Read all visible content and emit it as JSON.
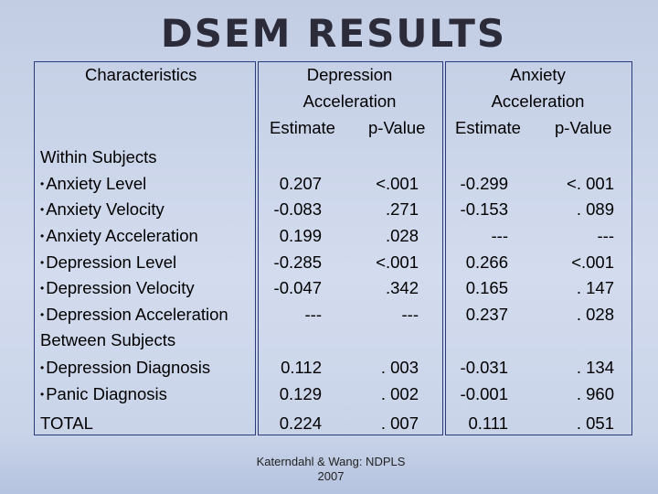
{
  "title": "DSEM RESULTS",
  "headers": {
    "characteristics": "Characteristics",
    "dep_line1": "Depression",
    "dep_line2": "Acceleration",
    "dep_est": "Estimate",
    "dep_p": "p-Value",
    "anx_line1": "Anxiety",
    "anx_line2": "Acceleration",
    "anx_est": "Estimate",
    "anx_p": "p-Value"
  },
  "sections": {
    "within": "Within Subjects",
    "between": "Between Subjects"
  },
  "rows": [
    {
      "label": "Anxiety Level",
      "bullet": true,
      "dep_est": "0.207",
      "dep_p": "<.001",
      "anx_est": "-0.299",
      "anx_p": "<. 001"
    },
    {
      "label": "Anxiety Velocity",
      "bullet": true,
      "dep_est": "-0.083",
      "dep_p": ".271",
      "anx_est": "-0.153",
      "anx_p": ". 089"
    },
    {
      "label": "Anxiety Acceleration",
      "bullet": true,
      "dep_est": "0.199",
      "dep_p": ".028",
      "anx_est": "---",
      "anx_p": "---"
    },
    {
      "label": "Depression Level",
      "bullet": true,
      "dep_est": "-0.285",
      "dep_p": "<.001",
      "anx_est": "0.266",
      "anx_p": "<.001"
    },
    {
      "label": "Depression Velocity",
      "bullet": true,
      "dep_est": "-0.047",
      "dep_p": ".342",
      "anx_est": "0.165",
      "anx_p": ". 147"
    },
    {
      "label": "Depression Acceleration",
      "bullet": true,
      "dep_est": "---",
      "dep_p": "---",
      "anx_est": "0.237",
      "anx_p": ". 028"
    },
    {
      "label": "Depression Diagnosis",
      "bullet": true,
      "dep_est": "0.112",
      "dep_p": ". 003",
      "anx_est": "-0.031",
      "anx_p": ". 134"
    },
    {
      "label": "Panic Diagnosis",
      "bullet": true,
      "dep_est": "0.129",
      "dep_p": ". 002",
      "anx_est": "-0.001",
      "anx_p": ". 960"
    },
    {
      "label": "TOTAL",
      "bullet": false,
      "dep_est": "0.224",
      "dep_p": ". 007",
      "anx_est": "0.111",
      "anx_p": ". 051"
    }
  ],
  "footer": {
    "line1": "Katerndahl & Wang:  NDPLS",
    "line2": "2007"
  }
}
